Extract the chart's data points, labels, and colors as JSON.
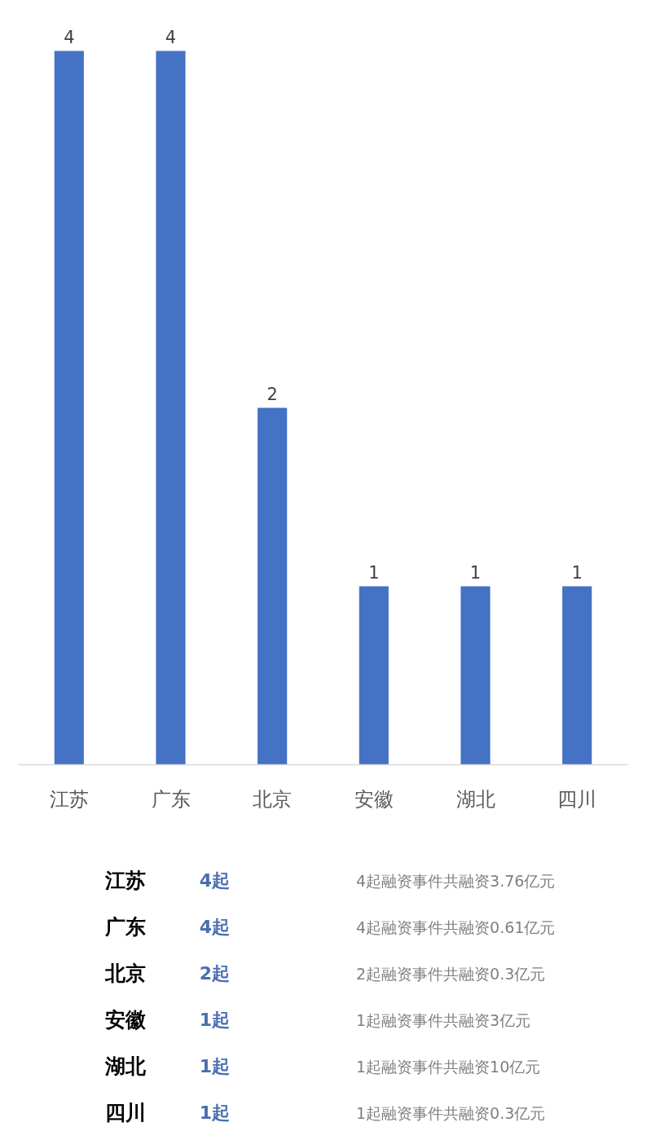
{
  "chart_data": {
    "type": "bar",
    "categories": [
      "江苏",
      "广东",
      "北京",
      "安徽",
      "湖北",
      "四川"
    ],
    "values": [
      4,
      4,
      2,
      1,
      1,
      1
    ],
    "color": "#4472c4",
    "data_labels": true,
    "annotations": [
      "江苏",
      "4起",
      "4起融资事件共融资3.76亿元",
      "广东",
      "4起",
      "4起融资事件共融资0.61亿元",
      "北京",
      "2起",
      "2起融资事件共融资0.3亿元",
      "安徽",
      "1起",
      "1起融资事件共融资3亿元",
      "湖北",
      "1起",
      "1起融资事件共融资10亿元",
      "四川",
      "1起",
      "1起融资事件共融资0.3亿元"
    ]
  }
}
